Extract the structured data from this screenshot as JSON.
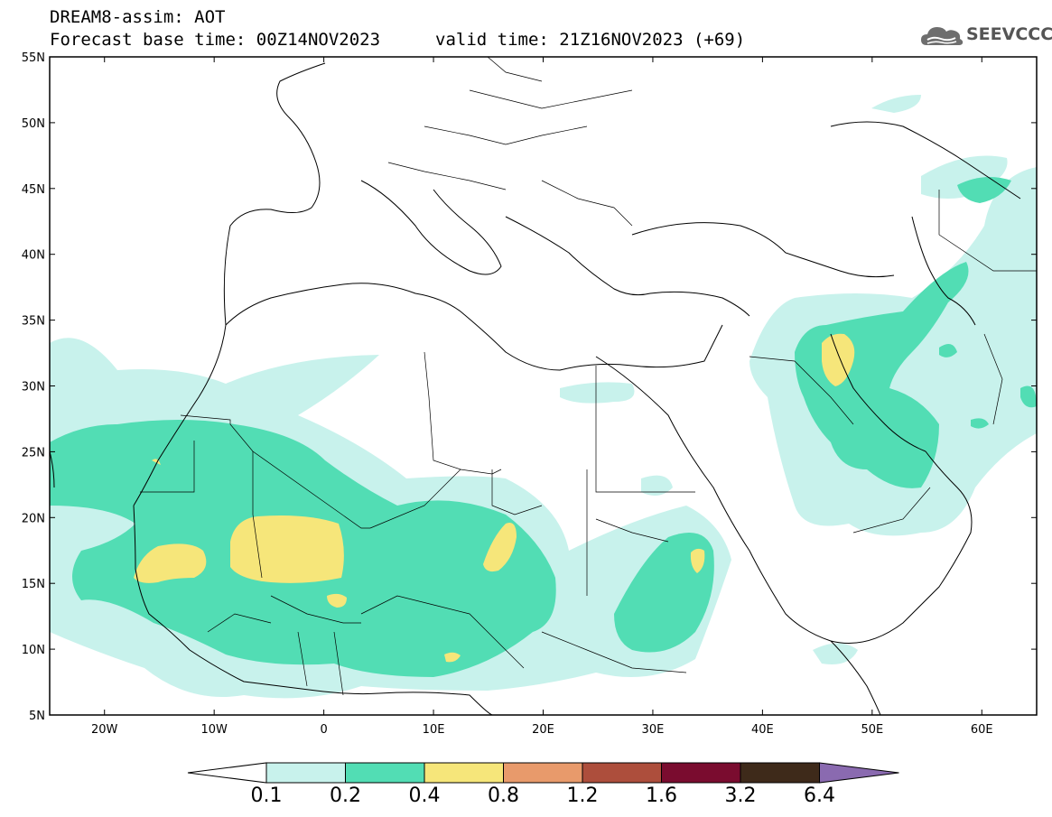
{
  "title": {
    "line1": "DREAM8-assim: AOT",
    "line2": "Forecast base time: 00Z14NOV2023",
    "valid": "valid time: 21Z16NOV2023 (+69)"
  },
  "logo": {
    "text": "SEEVCCC",
    "icon": "cloud-icon"
  },
  "axes": {
    "lon_range": [
      -25,
      65
    ],
    "lat_range": [
      5,
      55
    ],
    "lat_ticks": [
      "55N",
      "50N",
      "45N",
      "40N",
      "35N",
      "30N",
      "25N",
      "20N",
      "15N",
      "10N",
      "5N"
    ],
    "lon_ticks": [
      "20W",
      "10W",
      "0",
      "10E",
      "20E",
      "30E",
      "40E",
      "50E",
      "60E"
    ]
  },
  "colorbar": {
    "levels": [
      "0.1",
      "0.2",
      "0.4",
      "0.8",
      "1.2",
      "1.6",
      "3.2",
      "6.4"
    ],
    "colors": [
      "#ffffff",
      "#c8f2ec",
      "#52ddb4",
      "#f6e67a",
      "#e89a6b",
      "#ad4e3c",
      "#7a0c2f",
      "#3e2a1a",
      "#8a6ab0"
    ]
  }
}
